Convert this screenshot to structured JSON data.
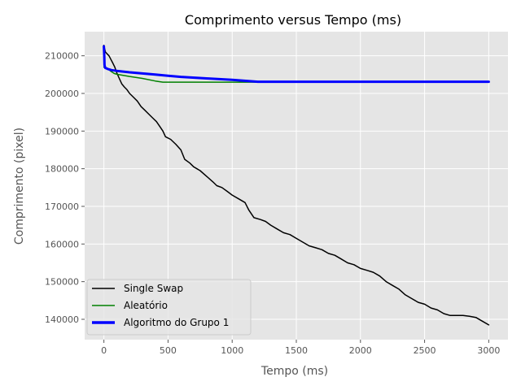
{
  "chart_data": {
    "type": "line",
    "title": "Comprimento versus Tempo (ms)",
    "xlabel": "Tempo (ms)",
    "ylabel": "Comprimento (pixel)",
    "xlim": [
      -150,
      3150
    ],
    "ylim": [
      134600,
      216400
    ],
    "x_ticks": [
      0,
      500,
      1000,
      1500,
      2000,
      2500,
      3000
    ],
    "y_ticks": [
      140000,
      150000,
      160000,
      170000,
      180000,
      190000,
      200000,
      210000
    ],
    "grid": true,
    "background": "#e5e5e5",
    "legend_position": "lower-left",
    "series": [
      {
        "name": "Single Swap",
        "color": "#000000",
        "line_width": 1.5,
        "points": [
          [
            0,
            212800
          ],
          [
            5,
            212000
          ],
          [
            12,
            211000
          ],
          [
            25,
            210500
          ],
          [
            40,
            210000
          ],
          [
            55,
            209000
          ],
          [
            70,
            208000
          ],
          [
            85,
            207000
          ],
          [
            100,
            205500
          ],
          [
            120,
            204000
          ],
          [
            140,
            202500
          ],
          [
            160,
            201700
          ],
          [
            180,
            201000
          ],
          [
            200,
            200000
          ],
          [
            230,
            199000
          ],
          [
            260,
            198000
          ],
          [
            290,
            196500
          ],
          [
            320,
            195500
          ],
          [
            350,
            194500
          ],
          [
            380,
            193500
          ],
          [
            410,
            192500
          ],
          [
            440,
            191000
          ],
          [
            460,
            190000
          ],
          [
            480,
            188500
          ],
          [
            520,
            187800
          ],
          [
            560,
            186500
          ],
          [
            600,
            185000
          ],
          [
            630,
            182500
          ],
          [
            670,
            181500
          ],
          [
            700,
            180500
          ],
          [
            750,
            179500
          ],
          [
            800,
            178000
          ],
          [
            850,
            176500
          ],
          [
            880,
            175500
          ],
          [
            920,
            175000
          ],
          [
            960,
            174000
          ],
          [
            1000,
            173000
          ],
          [
            1050,
            172000
          ],
          [
            1100,
            171000
          ],
          [
            1130,
            169000
          ],
          [
            1170,
            167000
          ],
          [
            1220,
            166500
          ],
          [
            1260,
            166000
          ],
          [
            1300,
            165000
          ],
          [
            1350,
            164000
          ],
          [
            1400,
            163000
          ],
          [
            1450,
            162500
          ],
          [
            1500,
            161500
          ],
          [
            1550,
            160500
          ],
          [
            1600,
            159500
          ],
          [
            1650,
            159000
          ],
          [
            1700,
            158500
          ],
          [
            1750,
            157500
          ],
          [
            1800,
            157000
          ],
          [
            1850,
            156000
          ],
          [
            1900,
            155000
          ],
          [
            1950,
            154500
          ],
          [
            2000,
            153500
          ],
          [
            2050,
            153000
          ],
          [
            2100,
            152500
          ],
          [
            2150,
            151500
          ],
          [
            2200,
            150000
          ],
          [
            2250,
            149000
          ],
          [
            2300,
            148000
          ],
          [
            2350,
            146500
          ],
          [
            2400,
            145500
          ],
          [
            2450,
            144500
          ],
          [
            2500,
            144000
          ],
          [
            2550,
            143000
          ],
          [
            2600,
            142500
          ],
          [
            2650,
            141500
          ],
          [
            2700,
            141000
          ],
          [
            2800,
            141000
          ],
          [
            2850,
            140800
          ],
          [
            2900,
            140500
          ],
          [
            2950,
            139500
          ],
          [
            3000,
            138500
          ]
        ]
      },
      {
        "name": "Aleatório",
        "color": "#008000",
        "line_width": 1.5,
        "points": [
          [
            0,
            207000
          ],
          [
            20,
            206800
          ],
          [
            50,
            206000
          ],
          [
            80,
            205300
          ],
          [
            100,
            205100
          ],
          [
            150,
            204800
          ],
          [
            200,
            204500
          ],
          [
            300,
            204000
          ],
          [
            400,
            203300
          ],
          [
            460,
            203000
          ],
          [
            600,
            203000
          ],
          [
            800,
            203000
          ],
          [
            1000,
            203000
          ],
          [
            1200,
            203000
          ],
          [
            1500,
            203000
          ],
          [
            2000,
            203000
          ],
          [
            2500,
            203000
          ],
          [
            3000,
            203000
          ]
        ]
      },
      {
        "name": "Algoritmo do Grupo 1",
        "color": "#0000ff",
        "line_width": 3,
        "points": [
          [
            0,
            212500
          ],
          [
            3,
            210000
          ],
          [
            5,
            207500
          ],
          [
            10,
            206800
          ],
          [
            30,
            206500
          ],
          [
            60,
            206200
          ],
          [
            100,
            206000
          ],
          [
            200,
            205600
          ],
          [
            300,
            205300
          ],
          [
            400,
            205000
          ],
          [
            500,
            204700
          ],
          [
            600,
            204400
          ],
          [
            800,
            204000
          ],
          [
            1000,
            203600
          ],
          [
            1200,
            203100
          ],
          [
            1500,
            203100
          ],
          [
            2000,
            203100
          ],
          [
            2500,
            203100
          ],
          [
            3000,
            203100
          ]
        ]
      }
    ]
  }
}
